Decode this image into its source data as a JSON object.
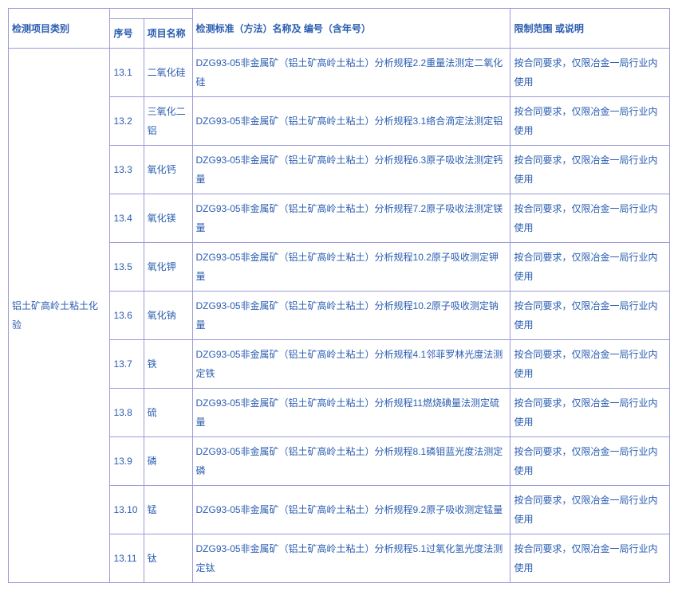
{
  "colors": {
    "border": "#9a9ad9",
    "text": "#2a5db0",
    "bg": "#ffffff"
  },
  "font": {
    "size": 12,
    "family": "Microsoft YaHei"
  },
  "headers": {
    "category": "检测项目类别",
    "seq": "序号",
    "item": "项目名称",
    "standard": "检测标准（方法）名称及 编号（含年号）",
    "scope": "限制范围 或说明"
  },
  "category": "铝土矿高岭土粘土化验",
  "rows": [
    {
      "seq": "13.1",
      "item": "二氧化硅",
      "standard": "DZG93-05非金属矿（铝土矿高岭土粘土）分析规程2.2重量法测定二氧化硅",
      "scope": "按合同要求，仅限冶金一局行业内使用"
    },
    {
      "seq": "13.2",
      "item": "三氧化二铝",
      "standard": "DZG93-05非金属矿（铝土矿高岭土粘土）分析规程3.1络合滴定法测定铝",
      "scope": "按合同要求，仅限冶金一局行业内使用"
    },
    {
      "seq": "13.3",
      "item": "氧化钙",
      "standard": "DZG93-05非金属矿（铝土矿高岭土粘土）分析规程6.3原子吸收法测定钙量",
      "scope": "按合同要求，仅限冶金一局行业内使用"
    },
    {
      "seq": "13.4",
      "item": "氧化镁",
      "standard": "DZG93-05非金属矿（铝土矿高岭土粘土）分析规程7.2原子吸收法测定镁量",
      "scope": "按合同要求，仅限冶金一局行业内使用"
    },
    {
      "seq": "13.5",
      "item": "氧化钾",
      "standard": "DZG93-05非金属矿（铝土矿高岭土粘土）分析规程10.2原子吸收测定钾量",
      "scope": "按合同要求，仅限冶金一局行业内使用"
    },
    {
      "seq": "13.6",
      "item": "氧化钠",
      "standard": "DZG93-05非金属矿（铝土矿高岭土粘土）分析规程10.2原子吸收测定钠量",
      "scope": "按合同要求，仅限冶金一局行业内使用"
    },
    {
      "seq": "13.7",
      "item": "铁",
      "standard": "DZG93-05非金属矿（铝土矿高岭土粘土）分析规程4.1邻菲罗林光度法测定铁",
      "scope": "按合同要求，仅限冶金一局行业内使用"
    },
    {
      "seq": "13.8",
      "item": "硫",
      "standard": "DZG93-05非金属矿（铝土矿高岭土粘土）分析规程11燃烧碘量法测定硫量",
      "scope": "按合同要求，仅限冶金一局行业内使用"
    },
    {
      "seq": "13.9",
      "item": "磷",
      "standard": "DZG93-05非金属矿（铝土矿高岭土粘土）分析规程8.1磷钼蓝光度法测定磷",
      "scope": "按合同要求，仅限冶金一局行业内使用"
    },
    {
      "seq": "13.10",
      "item": "锰",
      "standard": "DZG93-05非金属矿（铝土矿高岭土粘土）分析规程9.2原子吸收测定锰量",
      "scope": "按合同要求，仅限冶金一局行业内使用"
    },
    {
      "seq": "13.11",
      "item": "钛",
      "standard": "DZG93-05非金属矿（铝土矿高岭土粘土）分析规程5.1过氧化氢光度法测定钛",
      "scope": "按合同要求，仅限冶金一局行业内使用"
    }
  ]
}
